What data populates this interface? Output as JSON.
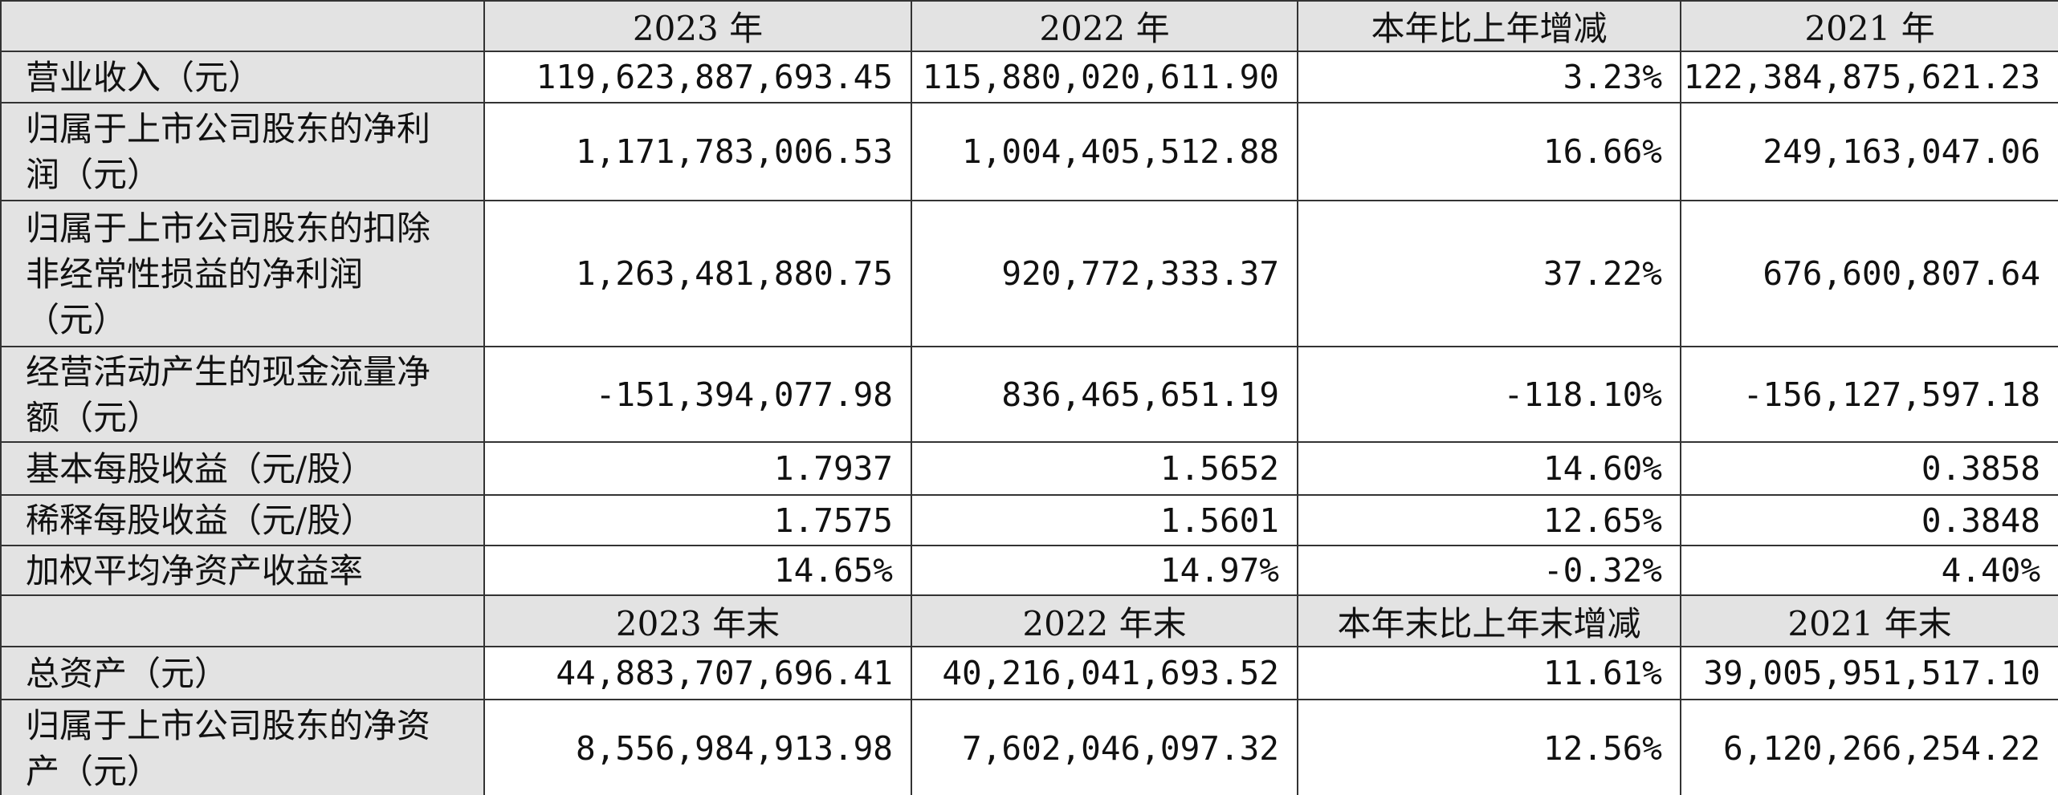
{
  "table": {
    "header1": [
      "2023 年",
      "2022 年",
      "本年比上年增减",
      "2021 年"
    ],
    "rows1": [
      {
        "label": "营业收入（元）",
        "values": [
          "119,623,887,693.45",
          "115,880,020,611.90",
          "3.23%",
          "122,384,875,621.23"
        ]
      },
      {
        "label": "归属于上市公司股东的净利润（元）",
        "values": [
          "1,171,783,006.53",
          "1,004,405,512.88",
          "16.66%",
          "249,163,047.06"
        ]
      },
      {
        "label": "归属于上市公司股东的扣除非经常性损益的净利润（元）",
        "values": [
          "1,263,481,880.75",
          "920,772,333.37",
          "37.22%",
          "676,600,807.64"
        ]
      },
      {
        "label": "经营活动产生的现金流量净额（元）",
        "values": [
          "-151,394,077.98",
          "836,465,651.19",
          "-118.10%",
          "-156,127,597.18"
        ]
      },
      {
        "label": "基本每股收益（元/股）",
        "values": [
          "1.7937",
          "1.5652",
          "14.60%",
          "0.3858"
        ]
      },
      {
        "label": "稀释每股收益（元/股）",
        "values": [
          "1.7575",
          "1.5601",
          "12.65%",
          "0.3848"
        ]
      },
      {
        "label": "加权平均净资产收益率",
        "values": [
          "14.65%",
          "14.97%",
          "-0.32%",
          "4.40%"
        ]
      }
    ],
    "header2": [
      "2023 年末",
      "2022 年末",
      "本年末比上年末增减",
      "2021 年末"
    ],
    "rows2": [
      {
        "label": "总资产（元）",
        "values": [
          "44,883,707,696.41",
          "40,216,041,693.52",
          "11.61%",
          "39,005,951,517.10"
        ]
      },
      {
        "label": "归属于上市公司股东的净资产（元）",
        "values": [
          "8,556,984,913.98",
          "7,602,046,097.32",
          "12.56%",
          "6,120,266,254.22"
        ]
      }
    ]
  }
}
